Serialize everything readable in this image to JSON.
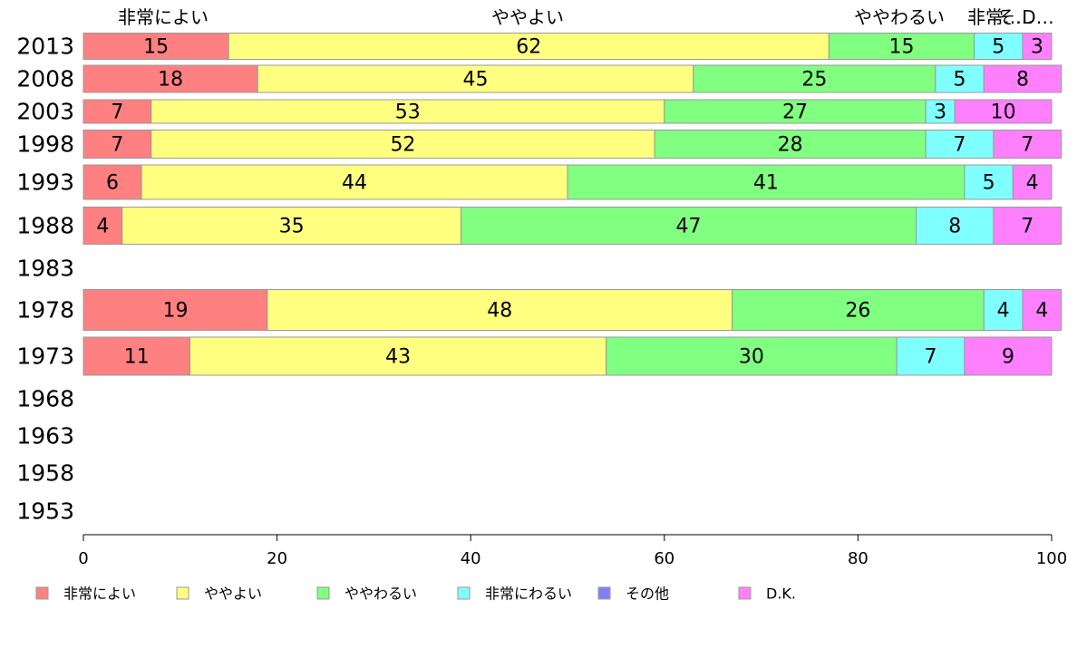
{
  "chart_data": {
    "type": "bar",
    "orientation": "horizontal",
    "stacked": true,
    "categories": [
      "2013",
      "2008",
      "2003",
      "1998",
      "1993",
      "1988",
      "1983",
      "1978",
      "1973",
      "1968",
      "1963",
      "1958",
      "1953"
    ],
    "series": [
      {
        "name": "非常によい",
        "color": "#ff8080",
        "values": [
          15,
          18,
          7,
          7,
          6,
          4,
          null,
          19,
          11,
          null,
          null,
          null,
          null
        ]
      },
      {
        "name": "ややよい",
        "color": "#ffff80",
        "values": [
          62,
          45,
          53,
          52,
          44,
          35,
          null,
          48,
          43,
          null,
          null,
          null,
          null
        ]
      },
      {
        "name": "ややわるい",
        "color": "#80ff80",
        "values": [
          15,
          25,
          27,
          28,
          41,
          47,
          null,
          26,
          30,
          null,
          null,
          null,
          null
        ]
      },
      {
        "name": "非常にわるい",
        "color": "#80ffff",
        "values": [
          5,
          5,
          3,
          7,
          5,
          8,
          null,
          4,
          7,
          null,
          null,
          null,
          null
        ]
      },
      {
        "name": "その他",
        "color": "#8080ff",
        "values": [
          0,
          0,
          0,
          0,
          0,
          0,
          null,
          0,
          0,
          null,
          null,
          null,
          null
        ]
      },
      {
        "name": "D.K.",
        "color": "#ff80ff",
        "values": [
          3,
          8,
          10,
          7,
          4,
          7,
          null,
          4,
          9,
          null,
          null,
          null,
          null
        ]
      }
    ],
    "top_labels": [
      "非常によい",
      "ややよい",
      "ややわるい",
      "非常…",
      "そ…",
      "D…"
    ],
    "xlim": [
      0,
      100
    ],
    "xticks": [
      0,
      20,
      40,
      60,
      80,
      100
    ],
    "legend_position": "bottom",
    "grid": false
  }
}
